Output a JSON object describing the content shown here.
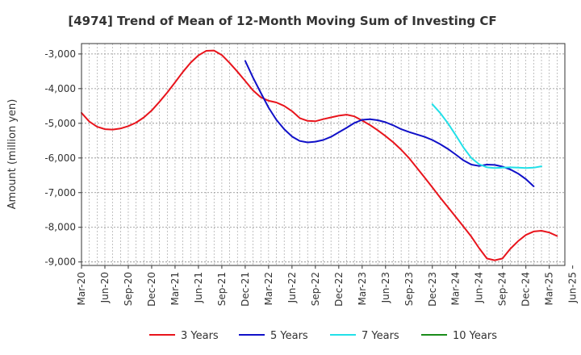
{
  "chart_data": {
    "type": "line",
    "title": "[4974]  Trend of Mean of 12-Month Moving Sum of Investing CF",
    "xlabel": "",
    "ylabel": "Amount (million yen)",
    "ylim": [
      -9100,
      -2700
    ],
    "yticks": [
      -3000,
      -4000,
      -5000,
      -6000,
      -7000,
      -8000,
      -9000
    ],
    "ytick_labels": [
      "-3,000",
      "-4,000",
      "-5,000",
      "-6,000",
      "-7,000",
      "-8,000",
      "-9,000"
    ],
    "x_tick_labels": [
      "Mar-20",
      "Jun-20",
      "Sep-20",
      "Dec-20",
      "Mar-21",
      "Jun-21",
      "Sep-21",
      "Dec-21",
      "Mar-22",
      "Jun-22",
      "Sep-22",
      "Dec-22",
      "Mar-23",
      "Jun-23",
      "Sep-23",
      "Dec-23",
      "Mar-24",
      "Jun-24",
      "Sep-24",
      "Dec-24",
      "Mar-25",
      "Jun-25"
    ],
    "x_start_month_index": 0,
    "x_num_months": 63,
    "grid": true,
    "legend_position": "bottom",
    "series": [
      {
        "name": "3 Years",
        "color": "#e8141c",
        "start_month_index": 0,
        "values": [
          -4700,
          -4950,
          -5100,
          -5170,
          -5180,
          -5150,
          -5080,
          -4980,
          -4830,
          -4630,
          -4380,
          -4110,
          -3820,
          -3520,
          -3250,
          -3040,
          -2910,
          -2900,
          -3030,
          -3260,
          -3510,
          -3780,
          -4050,
          -4250,
          -4350,
          -4400,
          -4500,
          -4650,
          -4850,
          -4930,
          -4940,
          -4880,
          -4830,
          -4780,
          -4750,
          -4800,
          -4920,
          -5050,
          -5200,
          -5370,
          -5550,
          -5760,
          -6000,
          -6280,
          -6560,
          -6850,
          -7140,
          -7420,
          -7700,
          -7980,
          -8270,
          -8600,
          -8900,
          -8950,
          -8900,
          -8620,
          -8400,
          -8220,
          -8120,
          -8100,
          -8150,
          -8250
        ]
      },
      {
        "name": "5 Years",
        "color": "#1010c8",
        "start_month_index": 21,
        "values": [
          -3200,
          -3680,
          -4120,
          -4550,
          -4900,
          -5170,
          -5380,
          -5510,
          -5550,
          -5530,
          -5480,
          -5390,
          -5260,
          -5130,
          -4990,
          -4900,
          -4880,
          -4910,
          -4970,
          -5060,
          -5170,
          -5250,
          -5320,
          -5390,
          -5480,
          -5600,
          -5740,
          -5900,
          -6070,
          -6190,
          -6230,
          -6190,
          -6200,
          -6250,
          -6330,
          -6450,
          -6610,
          -6820
        ]
      },
      {
        "name": "7 Years",
        "color": "#22e0e8",
        "start_month_index": 45,
        "values": [
          -4450,
          -4700,
          -5000,
          -5340,
          -5700,
          -6000,
          -6180,
          -6270,
          -6290,
          -6280,
          -6270,
          -6280,
          -6290,
          -6280,
          -6240
        ]
      },
      {
        "name": "10 Years",
        "color": "#1a8c1a",
        "start_month_index": 0,
        "values": []
      }
    ]
  }
}
